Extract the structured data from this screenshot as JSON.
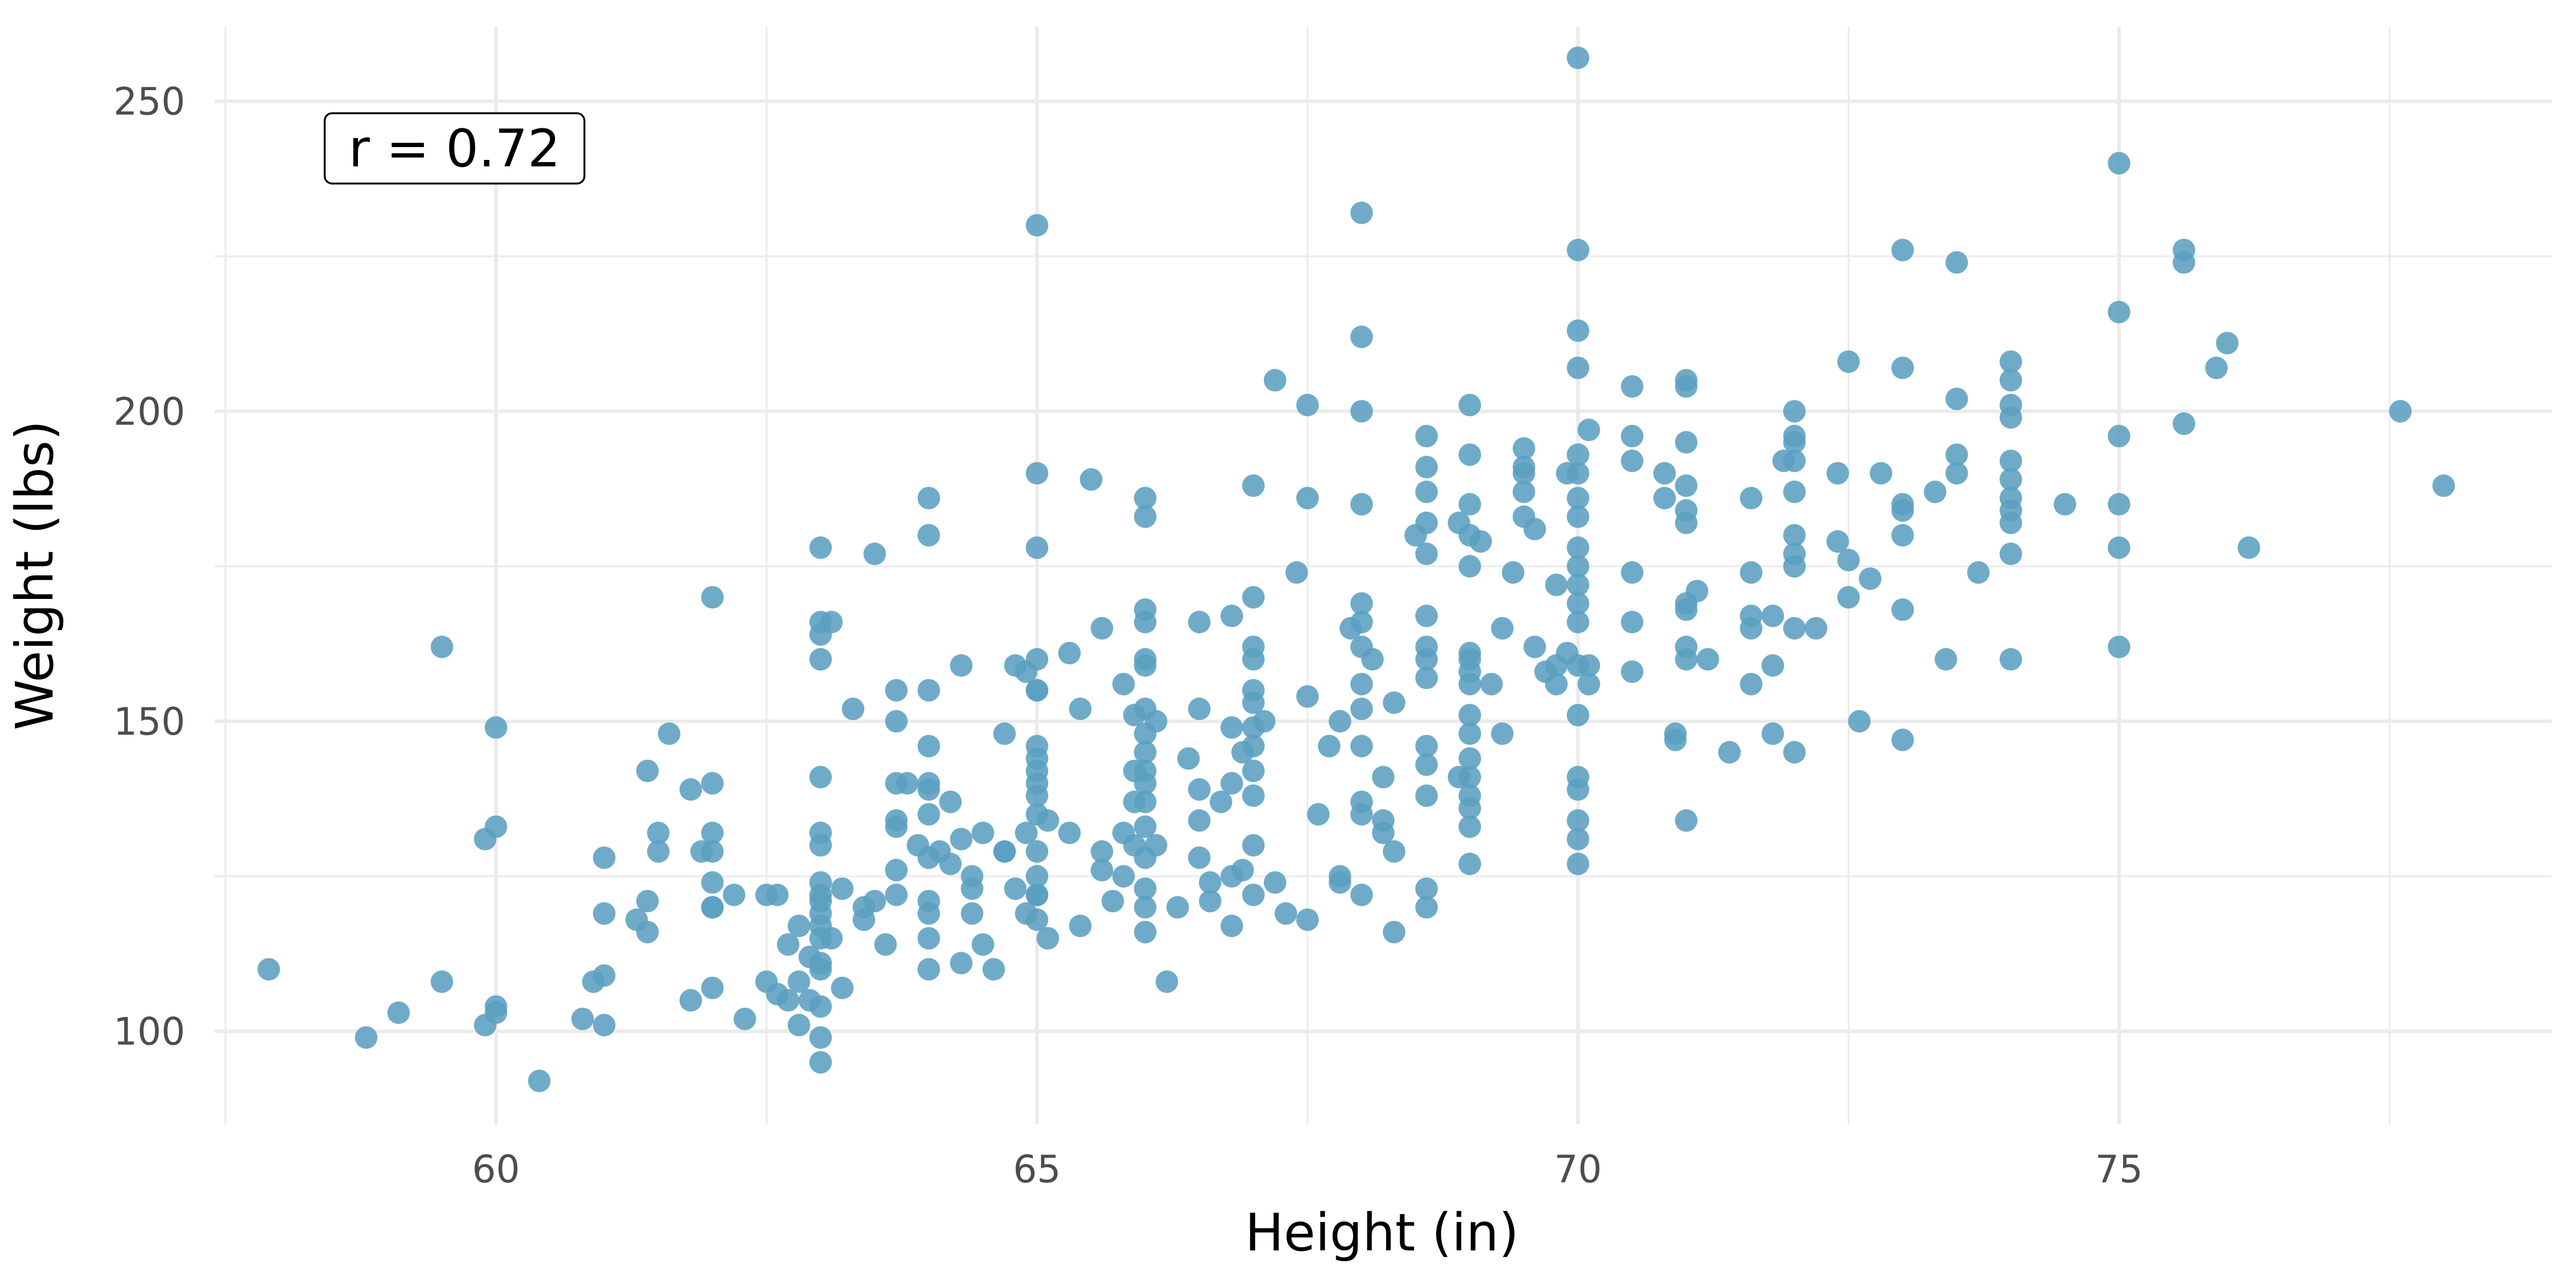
{
  "chart_data": {
    "type": "scatter",
    "title": "",
    "xlabel": "Height (in)",
    "ylabel": "Weight (lbs)",
    "xlim": [
      57.4,
      79.0
    ],
    "ylim": [
      85,
      262
    ],
    "x_ticks": [
      60,
      65,
      70,
      75
    ],
    "y_ticks": [
      100,
      150,
      200,
      250
    ],
    "grid": true,
    "legend": "none",
    "point_color": "#5b9fc0",
    "annotation": {
      "text": "r = 0.72",
      "position": "top-left"
    },
    "points": [
      [
        57.9,
        110
      ],
      [
        58.8,
        99
      ],
      [
        59.1,
        103
      ],
      [
        59.5,
        162
      ],
      [
        59.5,
        108
      ],
      [
        59.9,
        131
      ],
      [
        59.9,
        101
      ],
      [
        60,
        149
      ],
      [
        60,
        133
      ],
      [
        60,
        104
      ],
      [
        60,
        103
      ],
      [
        60.4,
        92
      ],
      [
        60.8,
        102
      ],
      [
        60.9,
        108
      ],
      [
        61,
        109
      ],
      [
        61,
        101
      ],
      [
        61,
        128
      ],
      [
        61,
        119
      ],
      [
        61.3,
        118
      ],
      [
        61.4,
        142
      ],
      [
        61.4,
        121
      ],
      [
        61.4,
        116
      ],
      [
        61.5,
        132
      ],
      [
        61.5,
        129
      ],
      [
        61.6,
        148
      ],
      [
        61.8,
        139
      ],
      [
        61.8,
        105
      ],
      [
        61.9,
        129
      ],
      [
        62,
        170
      ],
      [
        62,
        140
      ],
      [
        62,
        132
      ],
      [
        62,
        129
      ],
      [
        62,
        124
      ],
      [
        62,
        120
      ],
      [
        62,
        120
      ],
      [
        62,
        107
      ],
      [
        62.2,
        122
      ],
      [
        62.3,
        102
      ],
      [
        62.5,
        122
      ],
      [
        62.5,
        108
      ],
      [
        62.6,
        106
      ],
      [
        62.6,
        122
      ],
      [
        62.7,
        114
      ],
      [
        62.7,
        105
      ],
      [
        62.8,
        117
      ],
      [
        62.8,
        108
      ],
      [
        62.8,
        101
      ],
      [
        62.9,
        105
      ],
      [
        62.9,
        112
      ],
      [
        63,
        178
      ],
      [
        63,
        166
      ],
      [
        63,
        164
      ],
      [
        63,
        160
      ],
      [
        63,
        141
      ],
      [
        63,
        132
      ],
      [
        63,
        130
      ],
      [
        63,
        124
      ],
      [
        63,
        122
      ],
      [
        63,
        121
      ],
      [
        63,
        119
      ],
      [
        63,
        117
      ],
      [
        63,
        115
      ],
      [
        63,
        111
      ],
      [
        63,
        110
      ],
      [
        63,
        104
      ],
      [
        63,
        99
      ],
      [
        63,
        95
      ],
      [
        63.1,
        166
      ],
      [
        63.1,
        115
      ],
      [
        63.2,
        123
      ],
      [
        63.2,
        107
      ],
      [
        63.3,
        152
      ],
      [
        63.4,
        120
      ],
      [
        63.4,
        118
      ],
      [
        63.5,
        177
      ],
      [
        63.5,
        121
      ],
      [
        63.6,
        114
      ],
      [
        63.7,
        155
      ],
      [
        63.7,
        150
      ],
      [
        63.7,
        140
      ],
      [
        63.7,
        134
      ],
      [
        63.7,
        133
      ],
      [
        63.7,
        126
      ],
      [
        63.7,
        122
      ],
      [
        63.8,
        140
      ],
      [
        63.9,
        130
      ],
      [
        64,
        186
      ],
      [
        64,
        180
      ],
      [
        64,
        155
      ],
      [
        64,
        146
      ],
      [
        64,
        140
      ],
      [
        64,
        139
      ],
      [
        64,
        135
      ],
      [
        64,
        128
      ],
      [
        64,
        121
      ],
      [
        64,
        119
      ],
      [
        64,
        115
      ],
      [
        64,
        110
      ],
      [
        64.1,
        129
      ],
      [
        64.2,
        127
      ],
      [
        64.2,
        137
      ],
      [
        64.3,
        159
      ],
      [
        64.3,
        131
      ],
      [
        64.4,
        125
      ],
      [
        64.4,
        123
      ],
      [
        64.5,
        132
      ],
      [
        64.3,
        111
      ],
      [
        64.4,
        119
      ],
      [
        64.5,
        114
      ],
      [
        64.6,
        110
      ],
      [
        64.7,
        148
      ],
      [
        64.7,
        129
      ],
      [
        64.7,
        129
      ],
      [
        64.8,
        159
      ],
      [
        64.9,
        158
      ],
      [
        64.8,
        123
      ],
      [
        64.9,
        119
      ],
      [
        64.9,
        132
      ],
      [
        65,
        122
      ],
      [
        65,
        155
      ],
      [
        65,
        122
      ],
      [
        65.1,
        134
      ],
      [
        65.1,
        115
      ],
      [
        65,
        230
      ],
      [
        65,
        190
      ],
      [
        65,
        178
      ],
      [
        65,
        160
      ],
      [
        65,
        155
      ],
      [
        65,
        146
      ],
      [
        65,
        144
      ],
      [
        65,
        142
      ],
      [
        65,
        140
      ],
      [
        65,
        138
      ],
      [
        65,
        135
      ],
      [
        65,
        129
      ],
      [
        65,
        125
      ],
      [
        65,
        122
      ],
      [
        65,
        118
      ],
      [
        65.3,
        161
      ],
      [
        65.3,
        132
      ],
      [
        65.4,
        152
      ],
      [
        65.4,
        117
      ],
      [
        65.5,
        189
      ],
      [
        65.6,
        165
      ],
      [
        65.6,
        129
      ],
      [
        65.6,
        126
      ],
      [
        65.7,
        121
      ],
      [
        65.8,
        156
      ],
      [
        65.8,
        132
      ],
      [
        65.8,
        125
      ],
      [
        65.9,
        151
      ],
      [
        65.9,
        142
      ],
      [
        65.9,
        130
      ],
      [
        65.9,
        137
      ],
      [
        66,
        186
      ],
      [
        66,
        183
      ],
      [
        66,
        168
      ],
      [
        66,
        166
      ],
      [
        66,
        160
      ],
      [
        66,
        159
      ],
      [
        66,
        152
      ],
      [
        66,
        148
      ],
      [
        66,
        145
      ],
      [
        66,
        142
      ],
      [
        66,
        140
      ],
      [
        66,
        137
      ],
      [
        66,
        133
      ],
      [
        66,
        128
      ],
      [
        66,
        123
      ],
      [
        66,
        120
      ],
      [
        66,
        116
      ],
      [
        66.1,
        150
      ],
      [
        66.1,
        130
      ],
      [
        66.2,
        108
      ],
      [
        66.3,
        120
      ],
      [
        66.4,
        144
      ],
      [
        66.5,
        166
      ],
      [
        66.5,
        152
      ],
      [
        66.5,
        139
      ],
      [
        66.5,
        134
      ],
      [
        66.5,
        128
      ],
      [
        66.6,
        124
      ],
      [
        66.6,
        121
      ],
      [
        66.7,
        137
      ],
      [
        66.8,
        167
      ],
      [
        66.8,
        149
      ],
      [
        66.8,
        140
      ],
      [
        66.8,
        117
      ],
      [
        66.8,
        125
      ],
      [
        66.9,
        145
      ],
      [
        66.9,
        126
      ],
      [
        67,
        188
      ],
      [
        67,
        170
      ],
      [
        67,
        162
      ],
      [
        67,
        160
      ],
      [
        67,
        155
      ],
      [
        67,
        153
      ],
      [
        67,
        149
      ],
      [
        67,
        146
      ],
      [
        67,
        142
      ],
      [
        67,
        138
      ],
      [
        67,
        130
      ],
      [
        67,
        122
      ],
      [
        67.1,
        150
      ],
      [
        67.2,
        124
      ],
      [
        67.2,
        205
      ],
      [
        67.3,
        119
      ],
      [
        67.4,
        174
      ],
      [
        67.5,
        186
      ],
      [
        67.5,
        154
      ],
      [
        67.5,
        201
      ],
      [
        67.5,
        118
      ],
      [
        67.6,
        135
      ],
      [
        67.7,
        146
      ],
      [
        67.8,
        150
      ],
      [
        67.8,
        124
      ],
      [
        67.8,
        125
      ],
      [
        67.9,
        165
      ],
      [
        68,
        232
      ],
      [
        68,
        212
      ],
      [
        68,
        200
      ],
      [
        68,
        185
      ],
      [
        68,
        169
      ],
      [
        68,
        166
      ],
      [
        68,
        162
      ],
      [
        68,
        156
      ],
      [
        68,
        152
      ],
      [
        68,
        146
      ],
      [
        68,
        137
      ],
      [
        68,
        135
      ],
      [
        68,
        122
      ],
      [
        68.1,
        160
      ],
      [
        68.2,
        141
      ],
      [
        68.2,
        134
      ],
      [
        68.2,
        132
      ],
      [
        68.3,
        153
      ],
      [
        68.3,
        129
      ],
      [
        68.3,
        116
      ],
      [
        68.5,
        180
      ],
      [
        68.6,
        196
      ],
      [
        68.6,
        191
      ],
      [
        68.6,
        187
      ],
      [
        68.6,
        182
      ],
      [
        68.6,
        177
      ],
      [
        68.6,
        167
      ],
      [
        68.6,
        162
      ],
      [
        68.6,
        160
      ],
      [
        68.6,
        157
      ],
      [
        68.6,
        146
      ],
      [
        68.6,
        143
      ],
      [
        68.6,
        138
      ],
      [
        68.6,
        123
      ],
      [
        68.6,
        120
      ],
      [
        68.9,
        141
      ],
      [
        68.9,
        182
      ],
      [
        69,
        161
      ],
      [
        69,
        201
      ],
      [
        69,
        193
      ],
      [
        69,
        185
      ],
      [
        69,
        180
      ],
      [
        69,
        175
      ],
      [
        69,
        160
      ],
      [
        69,
        158
      ],
      [
        69,
        156
      ],
      [
        69,
        151
      ],
      [
        69,
        148
      ],
      [
        69,
        144
      ],
      [
        69,
        141
      ],
      [
        69,
        138
      ],
      [
        69,
        136
      ],
      [
        69,
        133
      ],
      [
        69,
        127
      ],
      [
        69.1,
        179
      ],
      [
        69.2,
        156
      ],
      [
        69.3,
        165
      ],
      [
        69.3,
        148
      ],
      [
        69.4,
        174
      ],
      [
        69.5,
        191
      ],
      [
        69.5,
        190
      ],
      [
        69.5,
        194
      ],
      [
        69.5,
        187
      ],
      [
        69.5,
        183
      ],
      [
        69.6,
        181
      ],
      [
        69.6,
        162
      ],
      [
        69.7,
        158
      ],
      [
        69.8,
        172
      ],
      [
        69.8,
        159
      ],
      [
        69.8,
        156
      ],
      [
        69.9,
        190
      ],
      [
        69.9,
        161
      ],
      [
        70,
        257
      ],
      [
        70,
        226
      ],
      [
        70,
        213
      ],
      [
        70,
        207
      ],
      [
        70,
        193
      ],
      [
        70,
        190
      ],
      [
        70,
        186
      ],
      [
        70,
        183
      ],
      [
        70,
        178
      ],
      [
        70,
        175
      ],
      [
        70,
        172
      ],
      [
        70,
        169
      ],
      [
        70,
        166
      ],
      [
        70,
        159
      ],
      [
        70,
        151
      ],
      [
        70,
        141
      ],
      [
        70,
        139
      ],
      [
        70,
        134
      ],
      [
        70,
        131
      ],
      [
        70,
        127
      ],
      [
        70.1,
        197
      ],
      [
        70.1,
        156
      ],
      [
        70.1,
        159
      ],
      [
        70.5,
        204
      ],
      [
        70.5,
        196
      ],
      [
        70.5,
        192
      ],
      [
        70.5,
        174
      ],
      [
        70.5,
        166
      ],
      [
        70.5,
        158
      ],
      [
        70.8,
        190
      ],
      [
        70.8,
        186
      ],
      [
        70.9,
        148
      ],
      [
        70.9,
        147
      ],
      [
        71,
        169
      ],
      [
        71,
        204
      ],
      [
        71,
        205
      ],
      [
        71,
        195
      ],
      [
        71,
        188
      ],
      [
        71,
        184
      ],
      [
        71,
        182
      ],
      [
        71,
        168
      ],
      [
        71,
        162
      ],
      [
        71,
        160
      ],
      [
        71,
        134
      ],
      [
        71.1,
        171
      ],
      [
        71.2,
        160
      ],
      [
        71.4,
        145
      ],
      [
        71.6,
        165
      ],
      [
        71.6,
        167
      ],
      [
        71.6,
        174
      ],
      [
        71.6,
        186
      ],
      [
        71.6,
        156
      ],
      [
        71.8,
        167
      ],
      [
        71.8,
        159
      ],
      [
        71.8,
        148
      ],
      [
        71.9,
        192
      ],
      [
        72,
        200
      ],
      [
        72,
        196
      ],
      [
        72,
        195
      ],
      [
        72,
        192
      ],
      [
        72,
        187
      ],
      [
        72,
        180
      ],
      [
        72,
        177
      ],
      [
        72,
        175
      ],
      [
        72,
        165
      ],
      [
        72,
        145
      ],
      [
        72.2,
        165
      ],
      [
        72.4,
        190
      ],
      [
        72.4,
        179
      ],
      [
        72.5,
        208
      ],
      [
        72.5,
        176
      ],
      [
        72.5,
        170
      ],
      [
        72.6,
        150
      ],
      [
        72.7,
        173
      ],
      [
        72.8,
        190
      ],
      [
        73,
        226
      ],
      [
        73,
        207
      ],
      [
        73,
        185
      ],
      [
        73,
        184
      ],
      [
        73,
        180
      ],
      [
        73,
        168
      ],
      [
        73,
        147
      ],
      [
        73.3,
        187
      ],
      [
        73.4,
        160
      ],
      [
        73.5,
        224
      ],
      [
        73.5,
        202
      ],
      [
        73.5,
        193
      ],
      [
        73.5,
        190
      ],
      [
        73.7,
        174
      ],
      [
        74,
        208
      ],
      [
        74,
        205
      ],
      [
        74,
        201
      ],
      [
        74,
        199
      ],
      [
        74,
        192
      ],
      [
        74,
        189
      ],
      [
        74,
        186
      ],
      [
        74,
        184
      ],
      [
        74,
        182
      ],
      [
        74,
        177
      ],
      [
        74,
        160
      ],
      [
        74.5,
        185
      ],
      [
        75,
        240
      ],
      [
        75,
        216
      ],
      [
        75,
        196
      ],
      [
        75,
        185
      ],
      [
        75,
        178
      ],
      [
        75,
        162
      ],
      [
        75.6,
        226
      ],
      [
        75.6,
        224
      ],
      [
        75.6,
        198
      ],
      [
        75.9,
        207
      ],
      [
        76,
        211
      ],
      [
        76.2,
        178
      ],
      [
        77.6,
        200
      ],
      [
        78,
        188
      ]
    ]
  }
}
